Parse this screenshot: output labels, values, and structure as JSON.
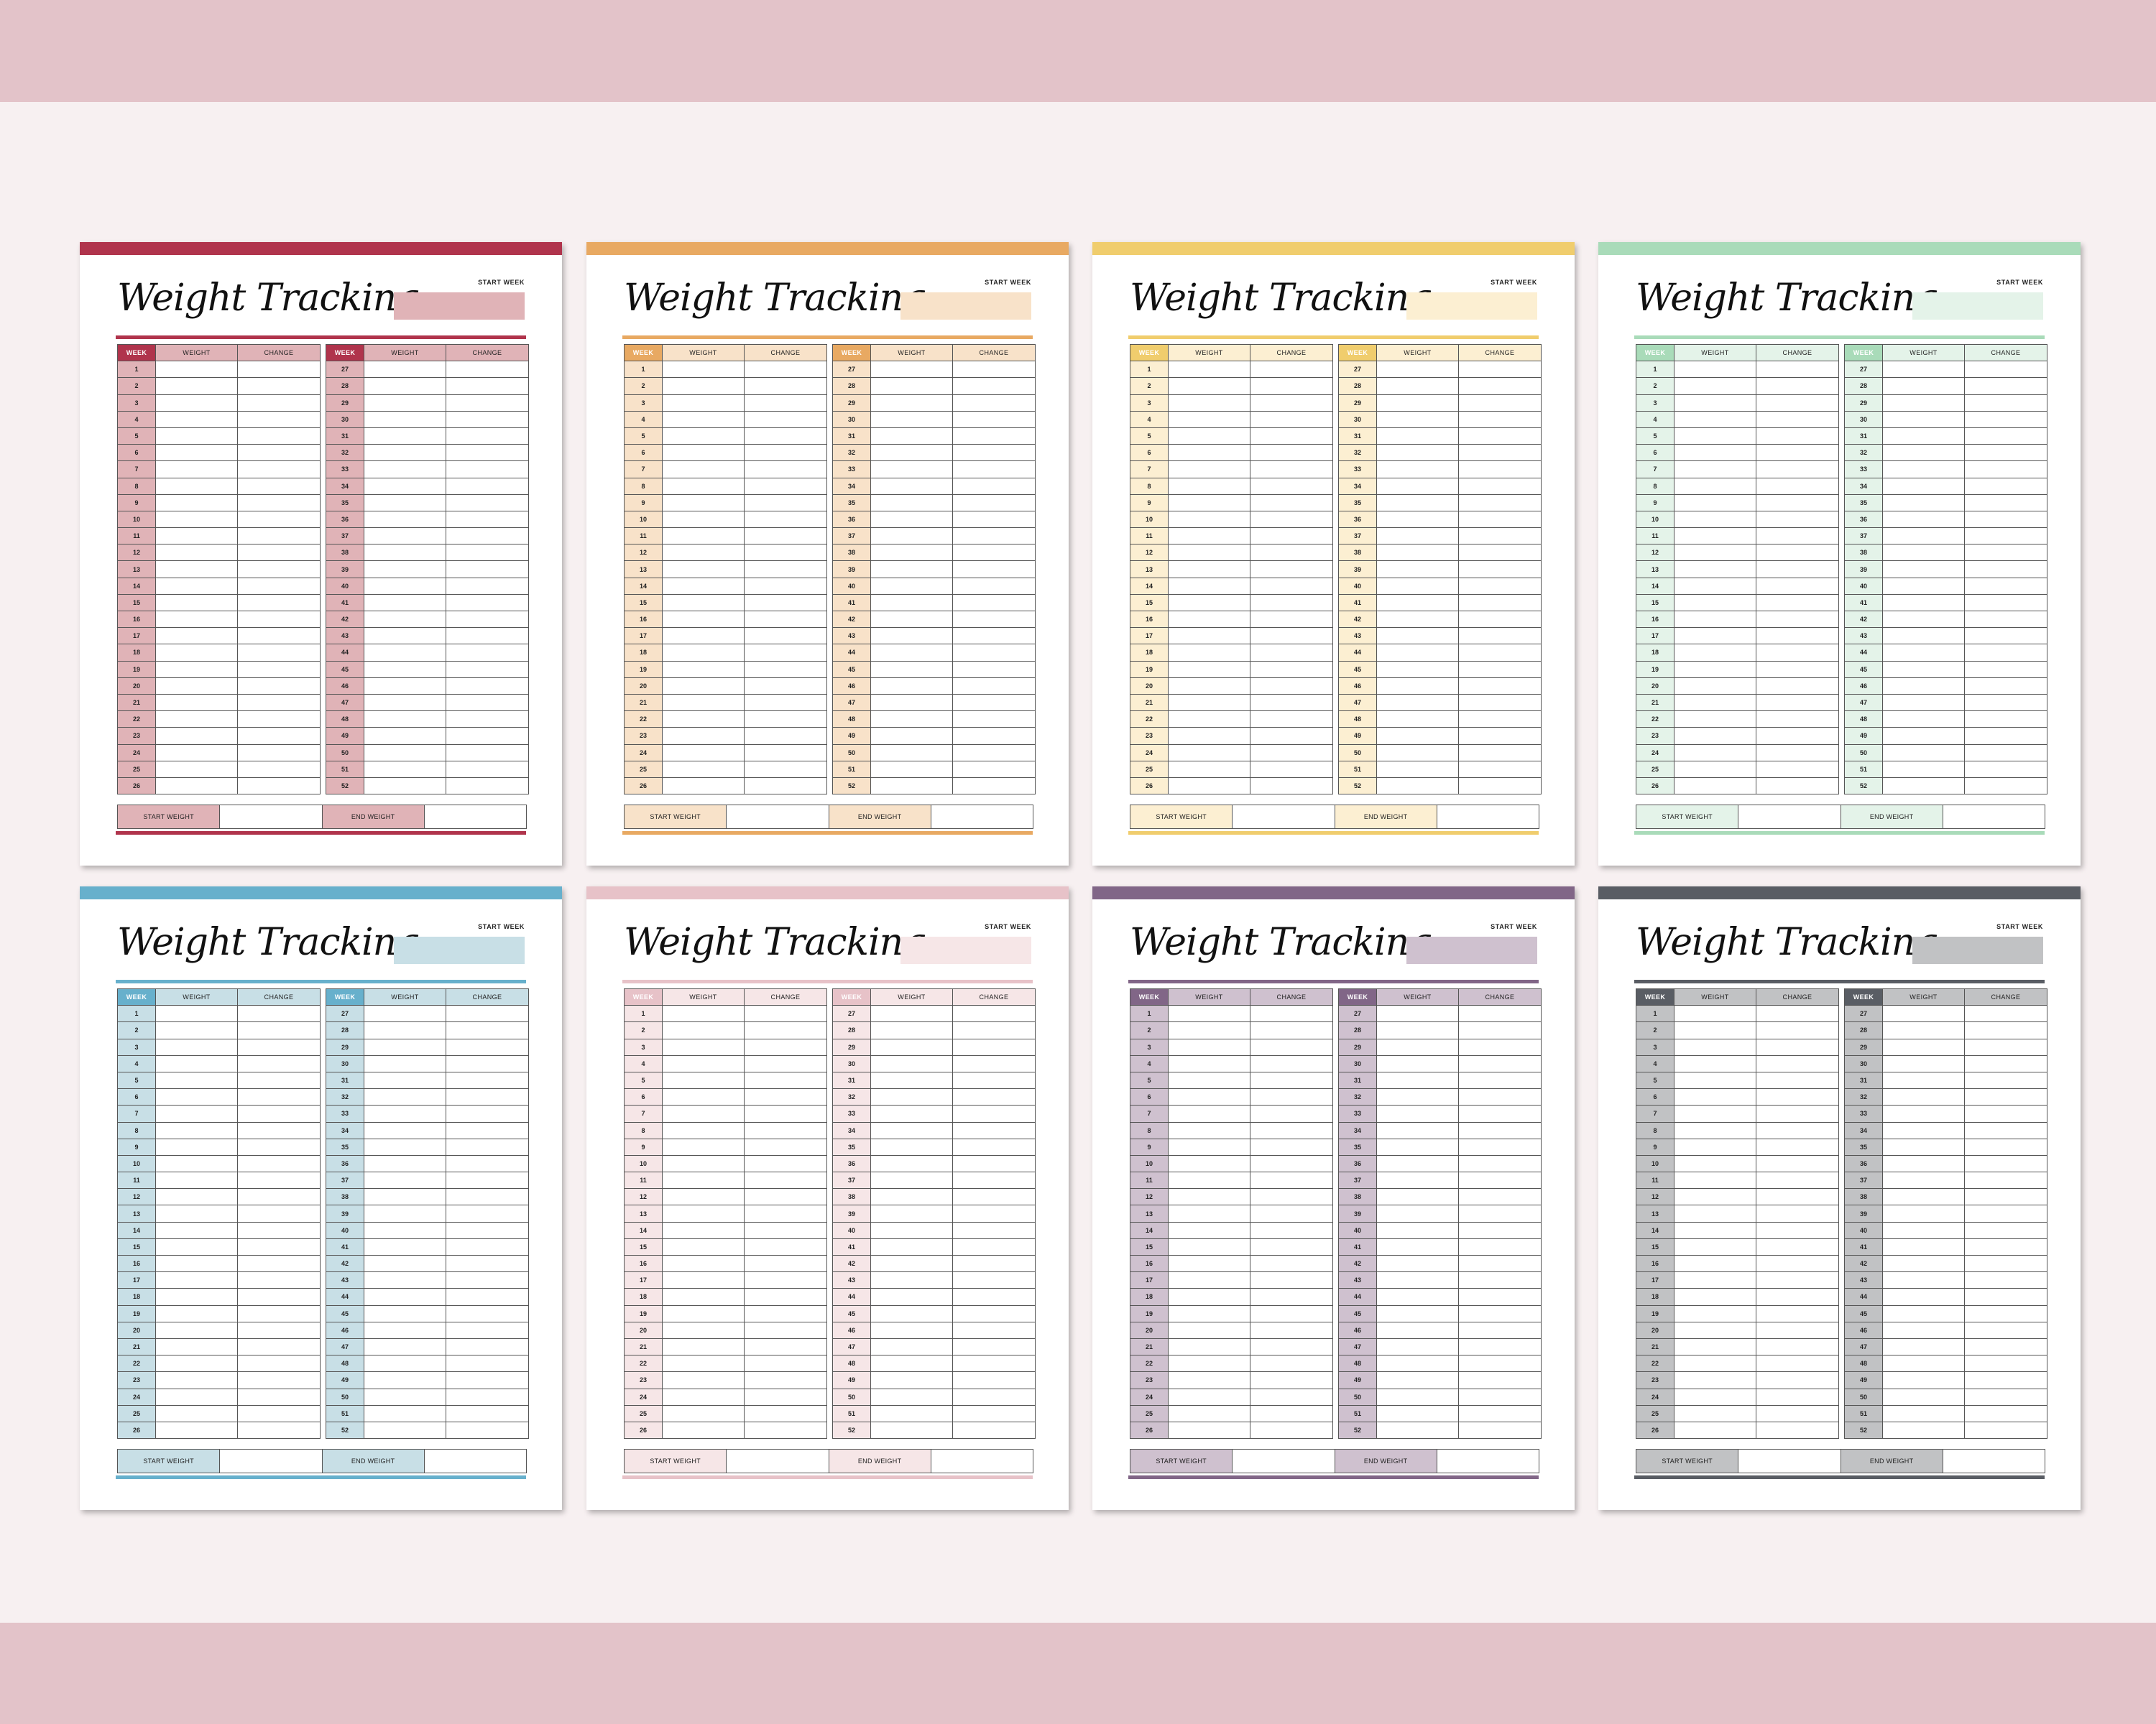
{
  "page": {
    "title": "Weight Tracking",
    "start_week_label": "START WEEK",
    "columns": [
      "WEEK",
      "WEIGHT",
      "CHANGE"
    ],
    "start_weight_label": "START WEIGHT",
    "end_weight_label": "END WEIGHT",
    "weeks_left": [
      "1",
      "2",
      "3",
      "4",
      "5",
      "6",
      "7",
      "8",
      "9",
      "10",
      "11",
      "12",
      "13",
      "14",
      "15",
      "16",
      "17",
      "18",
      "19",
      "20",
      "21",
      "22",
      "23",
      "24",
      "25",
      "26"
    ],
    "weeks_right": [
      "27",
      "28",
      "29",
      "30",
      "31",
      "32",
      "33",
      "34",
      "35",
      "36",
      "37",
      "38",
      "39",
      "40",
      "41",
      "42",
      "43",
      "44",
      "45",
      "46",
      "47",
      "48",
      "49",
      "50",
      "51",
      "52"
    ]
  },
  "sheets": [
    {
      "name": "crimson",
      "accent": "#b0344c",
      "light": "#e0b3b7"
    },
    {
      "name": "orange",
      "accent": "#e8a962",
      "light": "#f8e2c9"
    },
    {
      "name": "yellow",
      "accent": "#f0cd6d",
      "light": "#fcefd2"
    },
    {
      "name": "mint",
      "accent": "#a9dbb9",
      "light": "#e4f3e9"
    },
    {
      "name": "blue",
      "accent": "#67b0cc",
      "light": "#c8dfe6"
    },
    {
      "name": "pink",
      "accent": "#e7c2c8",
      "light": "#f6e6e7"
    },
    {
      "name": "purple",
      "accent": "#816687",
      "light": "#cfc1cf"
    },
    {
      "name": "charcoal",
      "accent": "#595d64",
      "light": "#c1c2c4"
    }
  ],
  "colors": {
    "background": "#f7f0f1",
    "band": "#e3c3c9"
  }
}
